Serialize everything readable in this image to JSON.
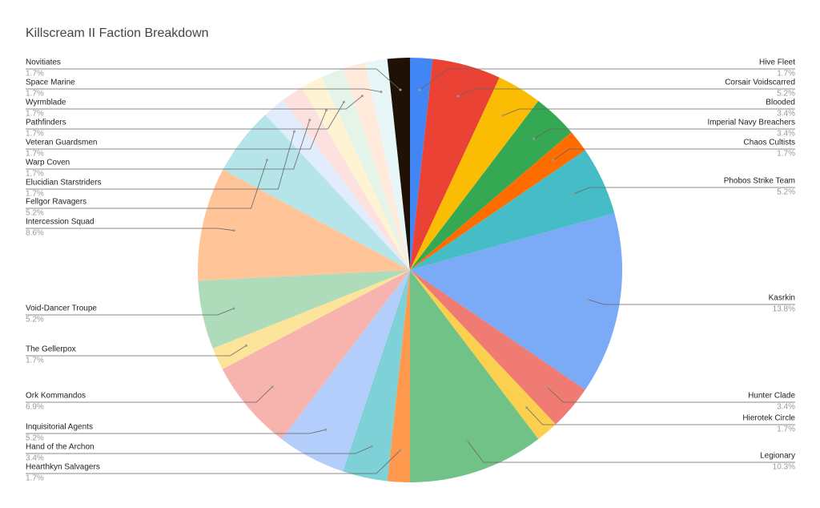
{
  "chart_data": {
    "type": "pie",
    "title": "Killscream II Faction Breakdown",
    "categories": [
      "Hive Fleet",
      "Corsair Voidscarred",
      "Blooded",
      "Imperial Navy Breachers",
      "Chaos Cultists",
      "Phobos Strike Team",
      "Kasrkin",
      "Hunter Clade",
      "Hierotek Circle",
      "Legionary",
      "Hearthkyn Salvagers",
      "Hand of the Archon",
      "Inquisitorial Agents",
      "Ork Kommandos",
      "The Gellerpox",
      "Void-Dancer Troupe",
      "Intercession Squad",
      "Fellgor Ravagers",
      "Elucidian Starstriders",
      "Warp Coven",
      "Veteran Guardsmen",
      "Pathfinders",
      "Wyrmblade",
      "Space Marine",
      "Novitiates"
    ],
    "values": [
      1.7,
      5.2,
      3.4,
      3.4,
      1.7,
      5.2,
      13.8,
      3.4,
      1.7,
      10.3,
      1.7,
      3.4,
      5.2,
      6.9,
      1.7,
      5.2,
      8.6,
      5.2,
      1.7,
      1.7,
      1.7,
      1.7,
      1.7,
      1.7,
      1.7
    ],
    "value_labels": [
      "1.7%",
      "5.2%",
      "3.4%",
      "3.4%",
      "1.7%",
      "5.2%",
      "13.8%",
      "3.4%",
      "1.7%",
      "10.3%",
      "1.7%",
      "3.4%",
      "5.2%",
      "6.9%",
      "1.7%",
      "5.2%",
      "8.6%",
      "5.2%",
      "1.7%",
      "1.7%",
      "1.7%",
      "1.7%",
      "1.7%",
      "1.7%",
      "1.7%"
    ],
    "colors": [
      "#4285f4",
      "#ea4335",
      "#fbbc04",
      "#34a853",
      "#ff6d01",
      "#46bdc6",
      "#7baaf7",
      "#f07b72",
      "#fcd04f",
      "#71c287",
      "#ff994d",
      "#7ed1d7",
      "#b3cefb",
      "#f7b4ae",
      "#fde49b",
      "#aedcba",
      "#ffc599",
      "#b5e5e8",
      "#e1ecfd",
      "#fce1df",
      "#fef3d3",
      "#e5f4e9",
      "#ffeadc",
      "#e7f6f7",
      "#1f1105"
    ]
  }
}
